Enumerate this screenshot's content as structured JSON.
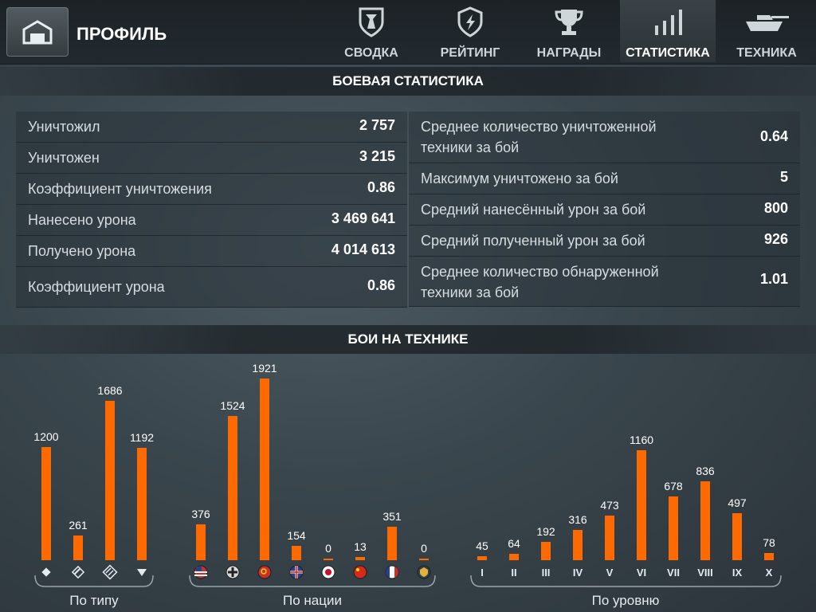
{
  "header": {
    "title": "ПРОФИЛЬ",
    "tabs": [
      {
        "label": "СВОДКА",
        "icon": "shield-icon",
        "active": false
      },
      {
        "label": "РЕЙТИНГ",
        "icon": "rating-shield-icon",
        "active": false
      },
      {
        "label": "НАГРАДЫ",
        "icon": "trophy-icon",
        "active": false
      },
      {
        "label": "СТАТИСТИКА",
        "icon": "bars-icon",
        "active": true
      },
      {
        "label": "ТЕХНИКА",
        "icon": "tank-icon",
        "active": false
      }
    ]
  },
  "battle_stats": {
    "title": "БОЕВАЯ СТАТИСТИКА",
    "left": [
      {
        "label": "Уничтожил",
        "value": "2 757"
      },
      {
        "label": "Уничтожен",
        "value": "3 215"
      },
      {
        "label": "Коэффициент уничтожения",
        "value": "0.86"
      },
      {
        "label": "Нанесено урона",
        "value": "3 469 641"
      },
      {
        "label": "Получено урона",
        "value": "4 014 613"
      },
      {
        "label": "Коэффициент урона",
        "value": "0.86"
      }
    ],
    "right": [
      {
        "label": "Среднее количество уничтоженной техники за бой",
        "value": "0.64"
      },
      {
        "label": "Максимум уничтожено за бой",
        "value": "5"
      },
      {
        "label": "Средний нанесённый урон за бой",
        "value": "800"
      },
      {
        "label": "Средний полученный урон за бой",
        "value": "926"
      },
      {
        "label": "Среднее количество обнаруженной техники за бой",
        "value": "1.01"
      }
    ]
  },
  "vehicle_battles": {
    "title": "БОИ НА ТЕХНИКЕ"
  },
  "chart_data": [
    {
      "type": "bar",
      "title": "По типу",
      "categories": [
        "light-tank-icon",
        "medium-tank-icon",
        "heavy-tank-icon",
        "td-icon"
      ],
      "values": [
        1200,
        261,
        1686,
        1192
      ],
      "color": "#ff6a00"
    },
    {
      "type": "bar",
      "title": "По нации",
      "categories": [
        "usa-flag-icon",
        "germany-flag-icon",
        "ussr-flag-icon",
        "uk-flag-icon",
        "japan-flag-icon",
        "china-flag-icon",
        "france-flag-icon",
        "mixed-nation-icon"
      ],
      "values": [
        376,
        1524,
        1921,
        154,
        0,
        13,
        351,
        0
      ],
      "color": "#ff6a00"
    },
    {
      "type": "bar",
      "title": "По уровню",
      "categories": [
        "I",
        "II",
        "III",
        "IV",
        "V",
        "VI",
        "VII",
        "VIII",
        "IX",
        "X"
      ],
      "values": [
        45,
        64,
        192,
        316,
        473,
        1160,
        678,
        836,
        497,
        78
      ],
      "color": "#ff6a00"
    }
  ]
}
